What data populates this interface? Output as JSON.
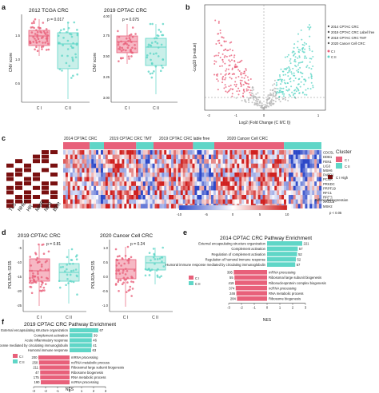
{
  "colors": {
    "c1": "#e8607a",
    "c2": "#5fd6c7",
    "box1": "#f6b8c4",
    "box2": "#c9efe9",
    "heat_low": "#2c48c8",
    "heat_high": "#d0201f",
    "dot": "#7a1010"
  },
  "panel_a": {
    "label": "a",
    "left": {
      "title": "2012 TCGA CRC",
      "p": "p = 0.017",
      "ylabel": "CNV score",
      "yticks": [
        "0.5",
        "1.0",
        "1.5"
      ],
      "xlabels": [
        "C I",
        "C II"
      ]
    },
    "right": {
      "title": "2019 CPTAC CRC",
      "p": "p = 0.075",
      "ylabel": "CNV score",
      "yticks": [
        "3.00",
        "3.25",
        "3.50",
        "3.75",
        "4.00"
      ],
      "xlabels": [
        "C I",
        "C II"
      ]
    }
  },
  "panel_b": {
    "label": "b",
    "ylabel": "-Log10 (p-value)",
    "xlabel": "Log2 (Fold Change (C II/C I))",
    "xticks": [
      "-2",
      "-1",
      "0",
      "1"
    ],
    "legend": [
      "2014 CPTAC CRC",
      "2019 CPTAC CRC Label free",
      "2019 CPTAC CRC TMT",
      "2020 Cancer Cell CRC"
    ],
    "cluster_legend": [
      "C I",
      "C II"
    ]
  },
  "panel_c": {
    "label": "c",
    "cohorts": [
      "2014 CPTAC CRC",
      "2019 CPTAC CRC TMT",
      "2019 CPTAC CRC lable free",
      "2020 Cancer Cell CRC"
    ],
    "genes": [
      "CDC5L",
      "DDB1",
      "FEN1",
      "LIG3",
      "MSH6",
      "PARP1",
      "PCNA",
      "PRKDC",
      "PRPF19",
      "RFC1",
      "RFC4",
      "XRCC6",
      "MSH2"
    ],
    "pathways": [
      "TLS",
      "NHEJ",
      "HR",
      "MMR",
      "NER",
      "BER"
    ],
    "cluster_title": "Cluster",
    "cluster_items": [
      "C I",
      "C II"
    ],
    "high_label": "C I High",
    "diff_label": "Differential expression",
    "p_label": "p < 0.05",
    "scale_ticks": [
      "-10",
      "-5",
      "0",
      "5",
      "10"
    ]
  },
  "panel_d": {
    "label": "d",
    "left": {
      "title": "2019 CPTAC CRC",
      "p": "p = 0.81",
      "ylabel": "POLR2A−S2S5",
      "yticks": [
        "-25",
        "-20",
        "-15",
        "-10",
        "-5"
      ],
      "xlabels": [
        "C I",
        "C II"
      ]
    },
    "right": {
      "title": "2020 Cancer Cell CRC",
      "p": "p = 0.24",
      "ylabel": "POLR2A−S2S5",
      "yticks": [
        "-1.0",
        "-0.5",
        "0.0",
        "0.5",
        "1.0"
      ],
      "xlabels": [
        "C I",
        "C II"
      ]
    }
  },
  "panel_e": {
    "label": "e",
    "title": "2014 CPTAC CRC Pathway Enrichment",
    "xlabel": "NES",
    "xticks": [
      "-3",
      "-2",
      "-1",
      "0",
      "1",
      "2",
      "3"
    ],
    "legend": [
      "C I",
      "C II"
    ],
    "c2_terms": [
      "External encapsulating structure organization",
      "Complement activation",
      "Regulation of complement activation",
      "Regulation of humoral immune response",
      "Humoral immune response mediated by circulating immunoglobulin"
    ],
    "c2_counts": [
      "221",
      "57",
      "52",
      "52",
      "57"
    ],
    "c1_terms": [
      "mRNA processing",
      "Ribosomal large subunit biogenesis",
      "Ribonucleoprotein complex biogenesis",
      "ncRNA processing",
      "RNA metabolic process",
      "Ribosome biogenesis"
    ],
    "c1_counts": [
      "395",
      "55",
      "419",
      "374",
      "246",
      "284"
    ]
  },
  "panel_f": {
    "label": "f",
    "title": "2019 CPTAC CRC Pathway Enrichment",
    "xlabel": "NES",
    "xticks": [
      "-3",
      "-2",
      "-1",
      "0",
      "1",
      "2",
      "3"
    ],
    "legend": [
      "C I",
      "C II"
    ],
    "c2_terms": [
      "External encapsulating structure organization",
      "Complement activation",
      "Acute inflammatory response",
      "Humoral immune response mediated by circulating immunoglobulin",
      "Humoral immune response"
    ],
    "c2_counts": [
      "67",
      "39",
      "46",
      "41",
      "63"
    ],
    "c1_terms": [
      "mRNA processing",
      "ncRNA metabolic process",
      "Ribosomal large subunit biogenesis",
      "Ribosome biogenesis",
      "RNA metabolic process",
      "ncRNA processing"
    ],
    "c1_counts": [
      "200",
      "250",
      "211",
      "47",
      "175",
      "190"
    ]
  },
  "chart_data": [
    {
      "panel": "e",
      "type": "bar",
      "title": "2014 CPTAC CRC Pathway Enrichment",
      "xlabel": "NES",
      "xlim": [
        -3,
        3
      ],
      "series": [
        {
          "name": "C II",
          "values": [
            2.75,
            2.4,
            2.35,
            2.25,
            2.2
          ]
        },
        {
          "name": "C I",
          "values": [
            -2.6,
            -2.55,
            -2.5,
            -2.45,
            -2.4,
            -2.35
          ]
        }
      ]
    },
    {
      "panel": "f",
      "type": "bar",
      "title": "2019 CPTAC CRC Pathway Enrichment",
      "xlabel": "NES",
      "xlim": [
        -3,
        3
      ],
      "series": [
        {
          "name": "C II",
          "values": [
            2.4,
            1.9,
            1.85,
            1.85,
            1.8
          ]
        },
        {
          "name": "C I",
          "values": [
            -2.6,
            -2.55,
            -2.5,
            -2.45,
            -2.45,
            -2.4
          ]
        }
      ]
    }
  ]
}
